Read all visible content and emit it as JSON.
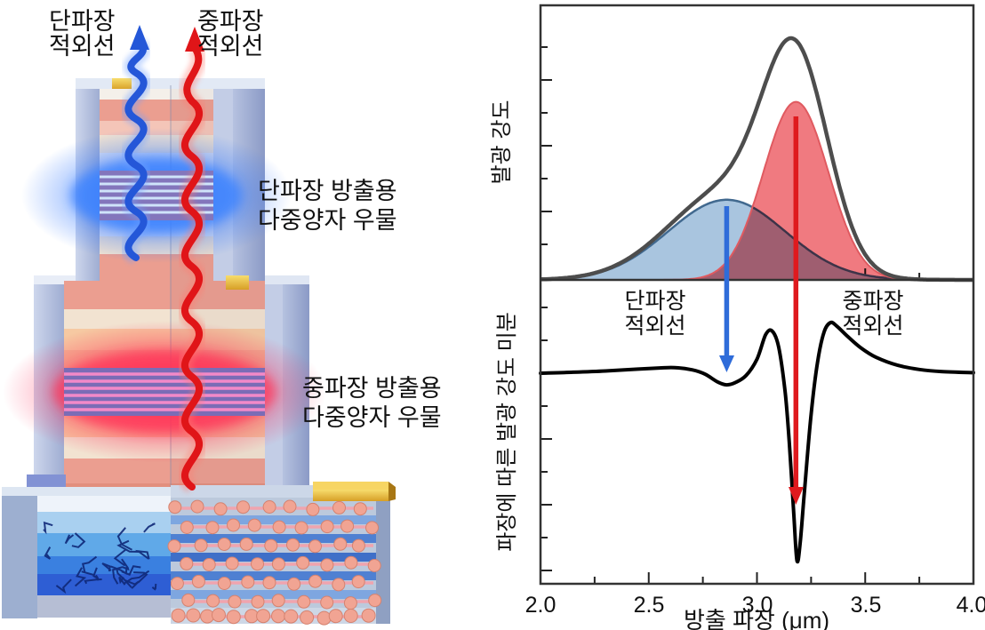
{
  "device": {
    "emission_labels": {
      "swir_line1": "단파장",
      "swir_line2": "적외선",
      "mwir_line1": "중파장",
      "mwir_line2": "적외선"
    },
    "mqw_labels": {
      "swir_line1": "단파장 방출용",
      "swir_line2": "다중양자 우물",
      "mwir_line1": "중파장 방출용",
      "mwir_line2": "다중양자 우물"
    },
    "colors": {
      "swir_glow": "#2a72ff",
      "mwir_glow": "#ff2050",
      "swir_arrow": "#2457d8",
      "mwir_arrow": "#e01518",
      "quantum_well_block": "#8376bc",
      "gold_contact": "#e9b93c",
      "wall": "#a9b5d6"
    }
  },
  "chart_data": [
    {
      "type": "area",
      "ylabel": "발광 강도",
      "xlabel": "",
      "xlim": [
        2.0,
        4.0
      ],
      "x_unit": "μm",
      "grid": false,
      "series": [
        {
          "name": "total-emission-spectrum",
          "style": "line",
          "color": "#4d4d4d",
          "stroke_width": 4,
          "composition": "scale × (swir_peak + mwir_peak)",
          "scale": 1.1,
          "peak_wavelength_um": 3.17,
          "relative_peak_height": 1.0
        },
        {
          "name": "swir-component-peak",
          "style": "area",
          "fill": "#a9c5df",
          "edge": "#41698f",
          "peak_center_um": 2.86,
          "peak_sigma_um": 0.27,
          "peak_amplitude": 0.36
        },
        {
          "name": "mwir-component-peak",
          "style": "area",
          "fill": "#f07a80",
          "blend": "multiply",
          "edge": "#e05a60",
          "peak_center_um": 3.18,
          "peak_sigma_um": 0.15,
          "peak_amplitude": 0.8
        }
      ],
      "arrows": [
        {
          "name": "swir-arrow",
          "color": "#2f6cd9",
          "x_um": 2.86
        },
        {
          "name": "mwir-arrow",
          "color": "#df1a1e",
          "x_um": 3.18
        }
      ]
    },
    {
      "type": "line",
      "ylabel": "파장에 따른 발광 강도 미분",
      "xlabel": "방출 파장 (μm)",
      "xlim": [
        2.0,
        4.0
      ],
      "xticks": [
        "2.0",
        "2.5",
        "3.0",
        "3.5",
        "4.0"
      ],
      "xtick_values": [
        2.0,
        2.5,
        3.0,
        3.5,
        4.0
      ],
      "minor_xtick_step_um": 0.25,
      "line_color": "#000000",
      "annotations": [
        {
          "name": "swir-region-label",
          "line1": "단파장",
          "line2": "적외선",
          "x_um": 2.53
        },
        {
          "name": "mwir-region-label",
          "line1": "중파장",
          "line2": "적외선",
          "x_um": 3.54
        }
      ],
      "points": [
        [
          2.0,
          0.0
        ],
        [
          2.15,
          0.005
        ],
        [
          2.3,
          0.012
        ],
        [
          2.45,
          0.022
        ],
        [
          2.55,
          0.028
        ],
        [
          2.62,
          0.03
        ],
        [
          2.7,
          0.018
        ],
        [
          2.76,
          -0.005
        ],
        [
          2.82,
          -0.048
        ],
        [
          2.86,
          -0.062
        ],
        [
          2.9,
          -0.05
        ],
        [
          2.95,
          -0.012
        ],
        [
          3.0,
          0.075
        ],
        [
          3.04,
          0.205
        ],
        [
          3.07,
          0.225
        ],
        [
          3.1,
          0.14
        ],
        [
          3.13,
          -0.1
        ],
        [
          3.15,
          -0.38
        ],
        [
          3.17,
          -0.75
        ],
        [
          3.185,
          -1.0
        ],
        [
          3.2,
          -0.9
        ],
        [
          3.22,
          -0.62
        ],
        [
          3.25,
          -0.22
        ],
        [
          3.28,
          0.06
        ],
        [
          3.31,
          0.22
        ],
        [
          3.34,
          0.27
        ],
        [
          3.37,
          0.25
        ],
        [
          3.42,
          0.195
        ],
        [
          3.48,
          0.135
        ],
        [
          3.55,
          0.085
        ],
        [
          3.65,
          0.042
        ],
        [
          3.75,
          0.02
        ],
        [
          3.85,
          0.009
        ],
        [
          4.0,
          0.003
        ]
      ]
    }
  ]
}
